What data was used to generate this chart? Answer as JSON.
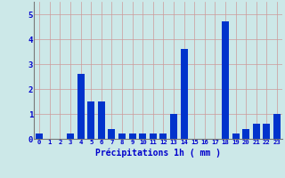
{
  "hours": [
    0,
    1,
    2,
    3,
    4,
    5,
    6,
    7,
    8,
    9,
    10,
    11,
    12,
    13,
    14,
    15,
    16,
    17,
    18,
    19,
    20,
    21,
    22,
    23
  ],
  "values": [
    0.2,
    0.0,
    0.0,
    0.2,
    2.6,
    1.5,
    1.5,
    0.4,
    0.2,
    0.2,
    0.2,
    0.2,
    0.2,
    1.0,
    3.6,
    0.0,
    0.0,
    0.0,
    4.7,
    0.2,
    0.4,
    0.6,
    0.6,
    1.0
  ],
  "bar_color": "#0033cc",
  "background_color": "#cce8e8",
  "grid_color": "#cc9999",
  "xlabel": "Précipitations 1h ( mm )",
  "xlabel_color": "#0000cc",
  "tick_color": "#0000cc",
  "axis_color": "#777777",
  "ylim": [
    0,
    5.5
  ],
  "yticks": [
    0,
    1,
    2,
    3,
    4,
    5
  ],
  "bar_width": 0.7
}
